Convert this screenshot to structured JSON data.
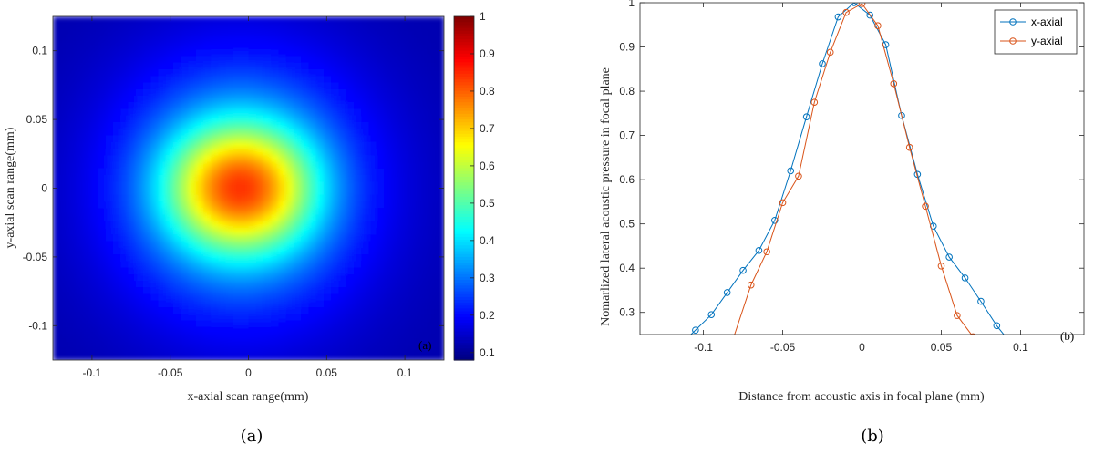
{
  "chart_data": [
    {
      "type": "heatmap",
      "panel_label": "(a)",
      "caption": "(a)",
      "xlabel": "x-axial scan range(mm)",
      "ylabel": "y-axial scan range(mm)",
      "xlim": [
        -0.125,
        0.125
      ],
      "ylim": [
        -0.125,
        0.125
      ],
      "xticks": [
        -0.1,
        -0.05,
        0,
        0.05,
        0.1
      ],
      "xtick_labels": [
        "-0.1",
        "-0.05",
        "0",
        "0.05",
        "0.1"
      ],
      "yticks": [
        -0.1,
        -0.05,
        0,
        0.05,
        0.1
      ],
      "ytick_labels": [
        "-0.1",
        "-0.05",
        "0",
        "0.05",
        "0.1"
      ],
      "colorbar": {
        "colormap": "jet",
        "range": [
          0.08,
          1
        ],
        "ticks": [
          0.1,
          0.2,
          0.3,
          0.4,
          0.5,
          0.6,
          0.7,
          0.8,
          0.9,
          1
        ],
        "tick_labels": [
          "0.1",
          "0.2",
          "0.3",
          "0.4",
          "0.5",
          "0.6",
          "0.7",
          "0.8",
          "0.9",
          "1"
        ]
      },
      "peak": {
        "x": -0.005,
        "y": 0.0,
        "value": 1.0
      },
      "background_value": 0.12
    },
    {
      "type": "line",
      "panel_label": "(b)",
      "caption": "(b)",
      "xlabel": "Distance from acoustic axis in focal plane (mm)",
      "ylabel": "Nomarlized lateral acoustic pressure in focal plane",
      "xlim": [
        -0.14,
        0.14
      ],
      "ylim": [
        0.25,
        1.0
      ],
      "xticks": [
        -0.1,
        -0.05,
        0,
        0.05,
        0.1
      ],
      "xtick_labels": [
        "-0.1",
        "-0.05",
        "0",
        "0.05",
        "0.1"
      ],
      "yticks": [
        0.3,
        0.4,
        0.5,
        0.6,
        0.7,
        0.8,
        0.9,
        1
      ],
      "ytick_labels": [
        "0.3",
        "0.4",
        "0.5",
        "0.6",
        "0.7",
        "0.8",
        "0.9",
        "1"
      ],
      "legend_position": "top-right",
      "series": [
        {
          "name": "x-axial",
          "color": "#0072BD",
          "x": [
            -0.115,
            -0.105,
            -0.095,
            -0.085,
            -0.075,
            -0.065,
            -0.055,
            -0.045,
            -0.035,
            -0.025,
            -0.015,
            -0.005,
            0.005,
            0.015,
            0.025,
            0.035,
            0.045,
            0.055,
            0.065,
            0.075,
            0.085,
            0.095
          ],
          "y": [
            0.225,
            0.26,
            0.295,
            0.345,
            0.395,
            0.44,
            0.508,
            0.62,
            0.742,
            0.862,
            0.968,
            1.0,
            0.972,
            0.905,
            0.745,
            0.612,
            0.495,
            0.425,
            0.378,
            0.325,
            0.27,
            0.225
          ]
        },
        {
          "name": "y-axial",
          "color": "#D95319",
          "x": [
            -0.085,
            -0.07,
            -0.06,
            -0.05,
            -0.04,
            -0.03,
            -0.02,
            -0.01,
            0.0,
            0.01,
            0.02,
            0.03,
            0.04,
            0.05,
            0.06,
            0.07
          ],
          "y": [
            0.2,
            0.362,
            0.437,
            0.548,
            0.608,
            0.775,
            0.888,
            0.978,
            0.998,
            0.948,
            0.817,
            0.673,
            0.54,
            0.405,
            0.293,
            0.245
          ]
        }
      ]
    }
  ]
}
